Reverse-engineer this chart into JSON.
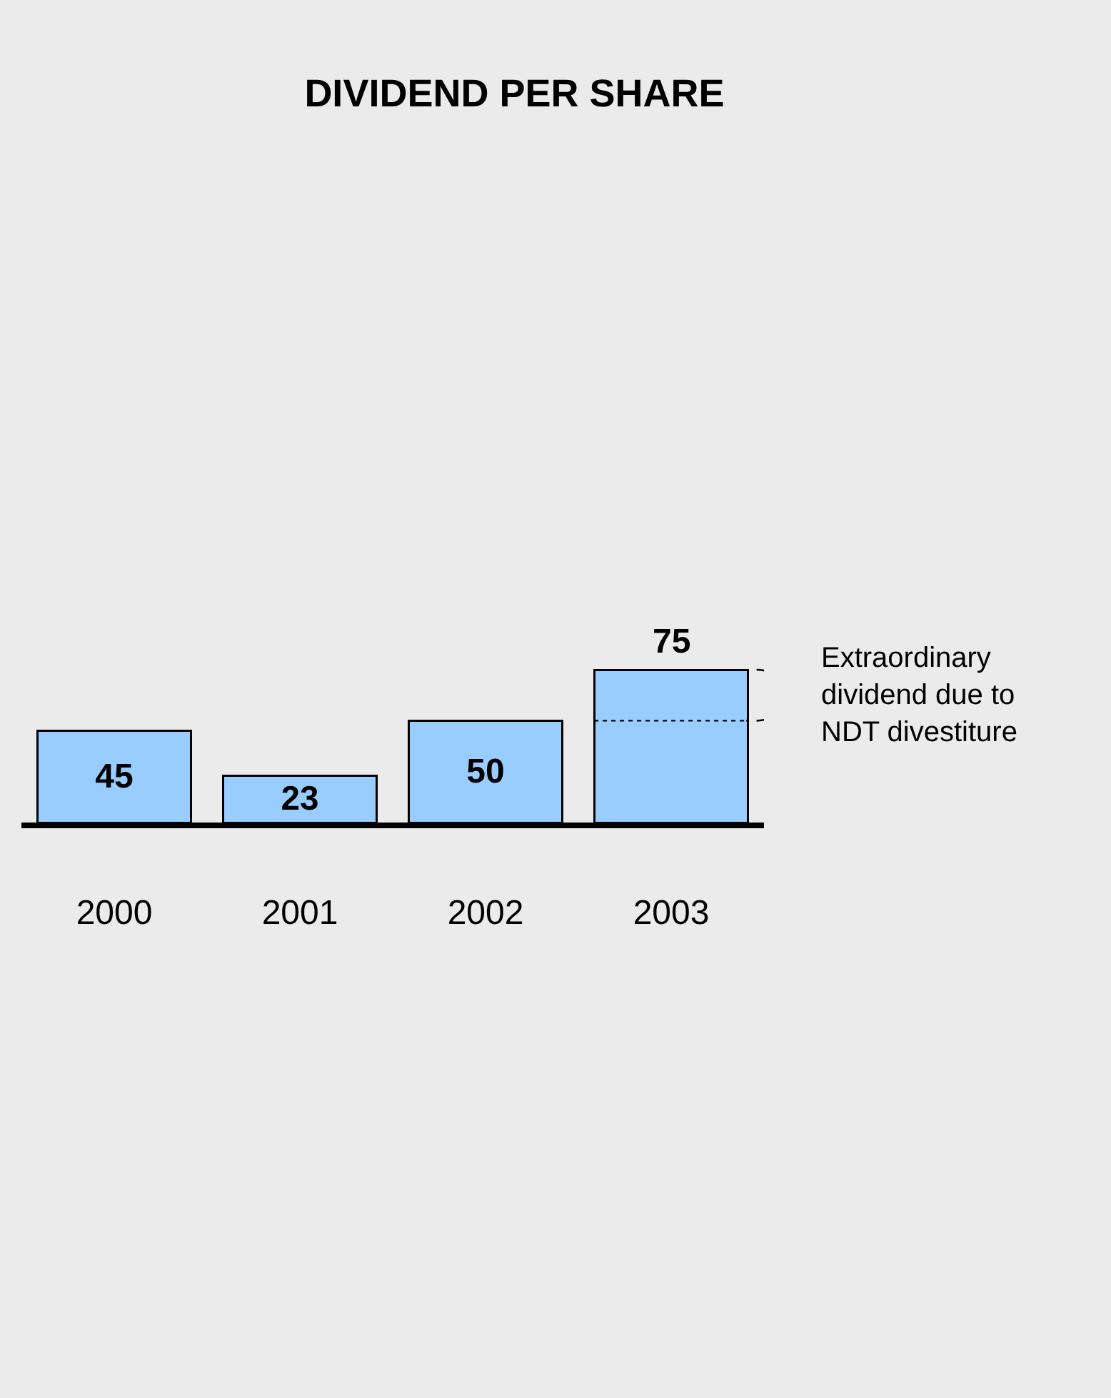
{
  "chart_data": {
    "type": "bar",
    "title": "DIVIDEND PER SHARE",
    "categories": [
      "2000",
      "2001",
      "2002",
      "2003"
    ],
    "stacked": true,
    "series": [
      {
        "color": "#99ccff",
        "values": [
          45,
          23,
          50,
          50
        ],
        "value_labels": [
          "45",
          "23",
          "50",
          null
        ]
      },
      {
        "color": "#99ccff",
        "values": [
          null,
          null,
          null,
          25
        ],
        "line_style": "dotted"
      }
    ],
    "totals": [
      null,
      null,
      null,
      "75"
    ],
    "annotations": [
      "Extraordinary\ndividend due to\nNDT divestiture"
    ],
    "tick_labels": "x",
    "grid": false
  }
}
